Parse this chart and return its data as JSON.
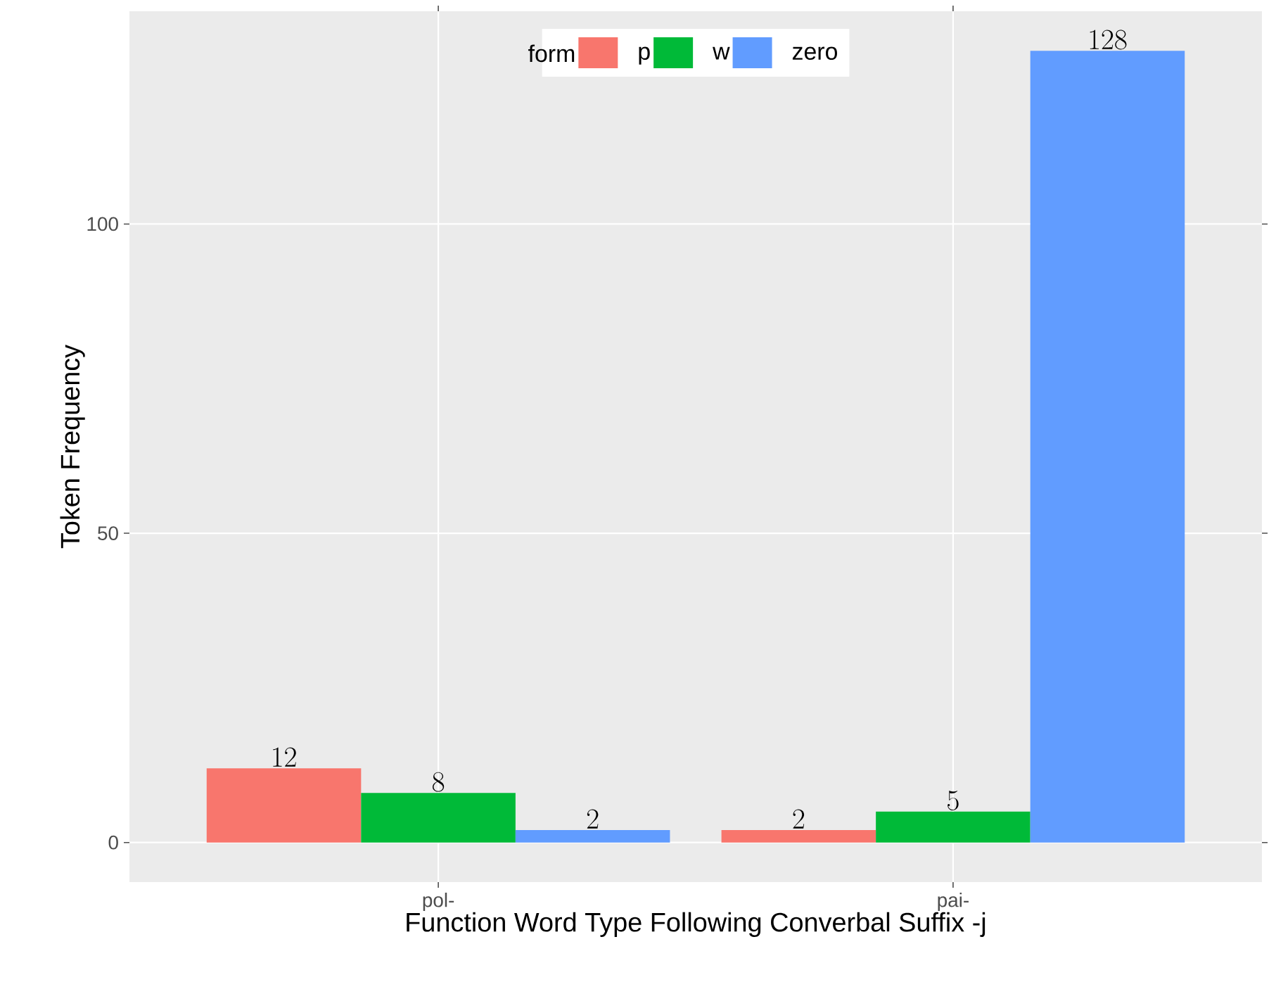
{
  "chart_data": {
    "type": "bar",
    "xlabel": "Function Word Type Following Converbal Suffix -j",
    "ylabel": "Token Frequency",
    "legend_title": "form",
    "categories": [
      "pol-",
      "pai-"
    ],
    "series": [
      {
        "name": "p",
        "color": "#f8766d",
        "values": [
          12,
          2
        ]
      },
      {
        "name": "w",
        "color": "#00ba38",
        "values": [
          8,
          5
        ]
      },
      {
        "name": "zero",
        "color": "#619cff",
        "values": [
          2,
          128
        ]
      }
    ],
    "ylim": [
      -6.4,
      134.4
    ],
    "yticks": [
      0,
      50,
      100
    ],
    "grid": true,
    "legend": "top",
    "data_labels": true
  }
}
